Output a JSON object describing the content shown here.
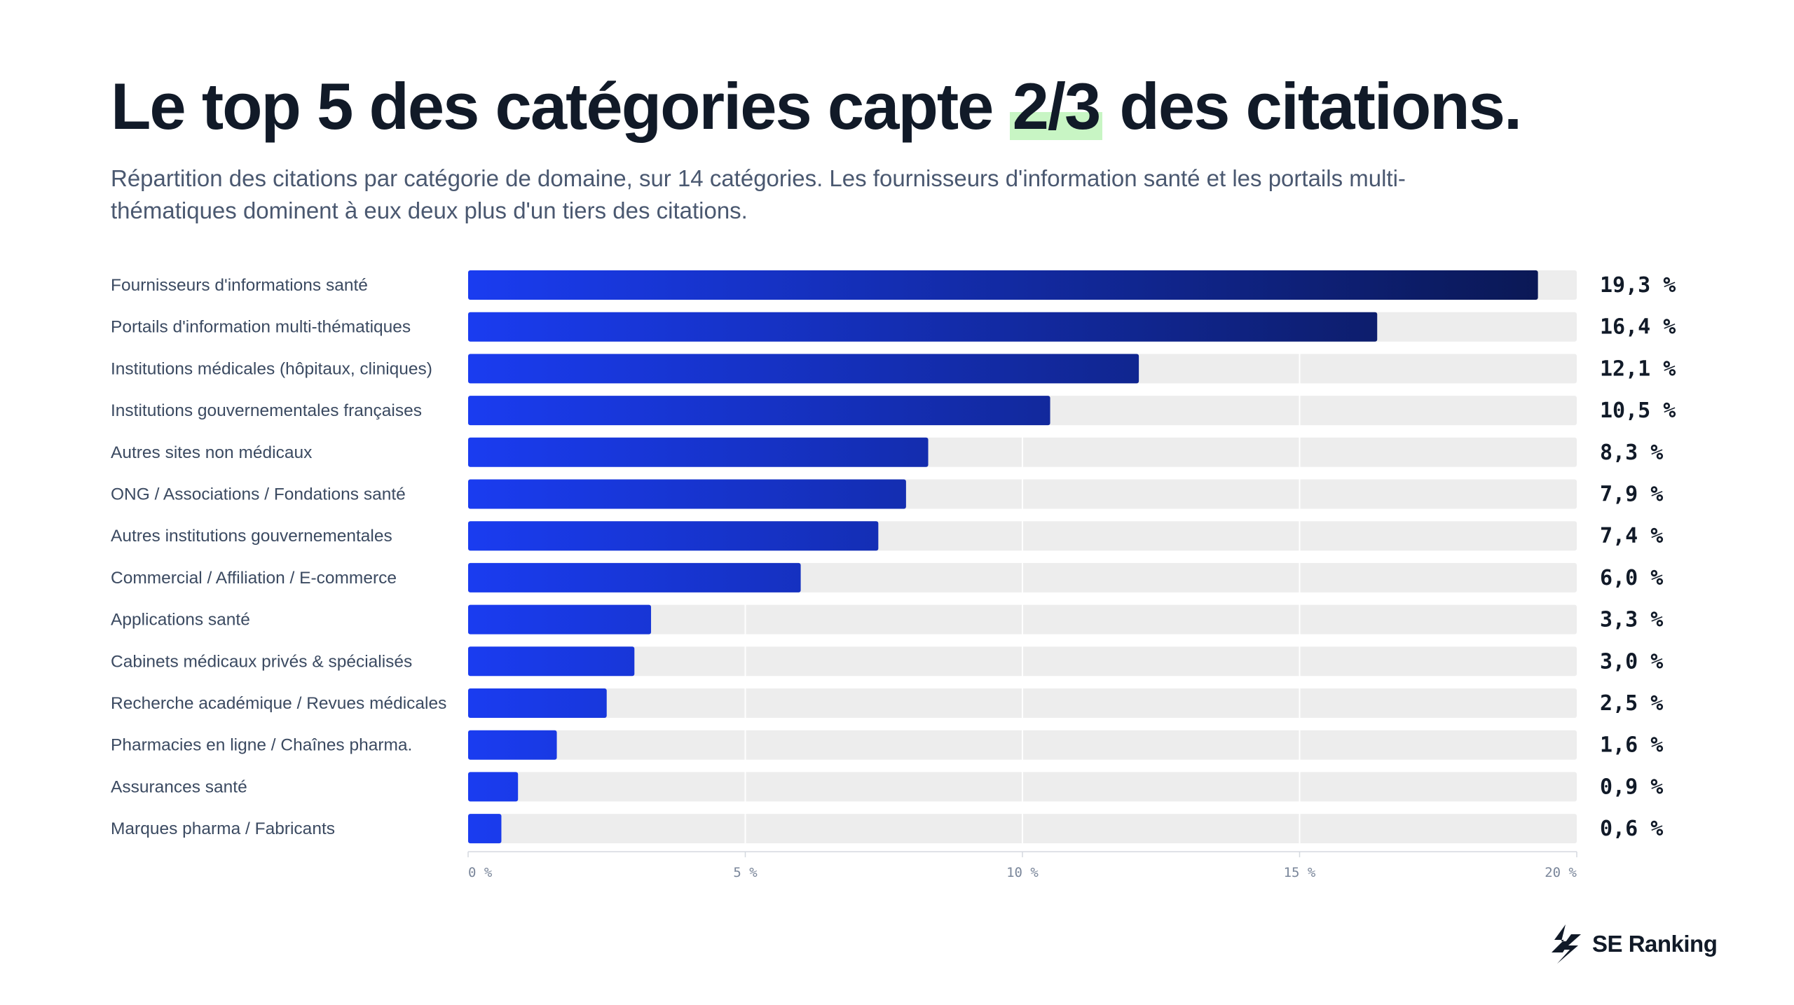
{
  "title": {
    "before": "Le top 5 des catégories capte",
    "highlight": "2/3",
    "after": "des citations."
  },
  "subtitle": "Répartition des citations par catégorie de domaine, sur 14 catégories. Les fournisseurs d'information santé et les portails multi-thématiques dominent à eux deux plus d'un tiers des citations.",
  "brand": {
    "name": "SE Ranking",
    "icon": "se-ranking-bolt-logo"
  },
  "colors": {
    "bar_start": "#1a3cf0",
    "bar_end": "#0a1750",
    "track": "#ededed",
    "highlight": "#c8f5c4"
  },
  "chart_data": {
    "type": "bar",
    "orientation": "horizontal",
    "categories": [
      "Fournisseurs d'informations santé",
      "Portails d'information multi-thématiques",
      "Institutions médicales (hôpitaux, cliniques)",
      "Institutions gouvernementales françaises",
      "Autres sites non médicaux",
      "ONG / Associations / Fondations santé",
      "Autres institutions gouvernementales",
      "Commercial / Affiliation / E-commerce",
      "Applications santé",
      "Cabinets médicaux privés & spécialisés",
      "Recherche académique / Revues médicales",
      "Pharmacies en ligne / Chaînes pharma.",
      "Assurances santé",
      "Marques pharma / Fabricants"
    ],
    "values": [
      19.3,
      16.4,
      12.1,
      10.5,
      8.3,
      7.9,
      7.4,
      6.0,
      3.3,
      3.0,
      2.5,
      1.6,
      0.9,
      0.6
    ],
    "value_labels": [
      "19,3 %",
      "16,4 %",
      "12,1 %",
      "10,5 %",
      "8,3 %",
      "7,9 %",
      "7,4 %",
      "6,0 %",
      "3,3 %",
      "3,0 %",
      "2,5 %",
      "1,6 %",
      "0,9 %",
      "0,6 %"
    ],
    "xlim": [
      0,
      20
    ],
    "xticks": [
      0,
      5,
      10,
      15,
      20
    ],
    "xtick_labels": [
      "0 %",
      "5 %",
      "10 %",
      "15 %",
      "20 %"
    ],
    "grid": true,
    "legend": "none"
  }
}
